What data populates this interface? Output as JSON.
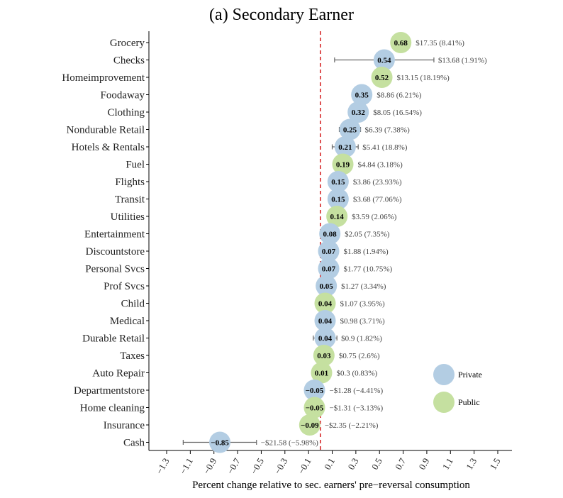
{
  "chart_data": {
    "type": "scatter",
    "title": "(a) Secondary Earner",
    "xlabel": "Percent change relative to sec. earners' pre−reversal consumption",
    "ylabel": "",
    "xlim": [
      -1.45,
      1.62
    ],
    "xticks": [
      -1.3,
      -1.1,
      -0.9,
      -0.7,
      -0.5,
      -0.3,
      -0.1,
      0.1,
      0.3,
      0.5,
      0.7,
      0.9,
      1.1,
      1.3,
      1.5
    ],
    "xtick_labels": [
      "−1.3",
      "−1.1",
      "−0.9",
      "−0.7",
      "−0.5",
      "−0.3",
      "−0.1",
      "0.1",
      "0.3",
      "0.5",
      "0.7",
      "0.9",
      "1.1",
      "1.3",
      "1.5"
    ],
    "reference_line": 0,
    "grid": false,
    "legend_position": "right",
    "legend": [
      {
        "name": "Private",
        "color": "#b3cde3"
      },
      {
        "name": "Public",
        "color": "#c5e0a0"
      }
    ],
    "points": [
      {
        "category": "Grocery",
        "value": 0.68,
        "label": "0.68",
        "lo": 0.6,
        "hi": 0.76,
        "group": "Public",
        "annotation": "$17.35 (8.41%)"
      },
      {
        "category": "Checks",
        "value": 0.54,
        "label": "0.54",
        "lo": 0.12,
        "hi": 0.96,
        "group": "Private",
        "annotation": "$13.68 (1.91%)"
      },
      {
        "category": "Homeimprovement",
        "value": 0.52,
        "label": "0.52",
        "lo": 0.45,
        "hi": 0.59,
        "group": "Public",
        "annotation": "$13.15 (18.19%)"
      },
      {
        "category": "Foodaway",
        "value": 0.35,
        "label": "0.35",
        "lo": 0.29,
        "hi": 0.41,
        "group": "Private",
        "annotation": "$8.86 (6.21%)"
      },
      {
        "category": "Clothing",
        "value": 0.32,
        "label": "0.32",
        "lo": 0.26,
        "hi": 0.38,
        "group": "Private",
        "annotation": "$8.05 (16.54%)"
      },
      {
        "category": "Nondurable Retail",
        "value": 0.25,
        "label": "0.25",
        "lo": 0.16,
        "hi": 0.34,
        "group": "Private",
        "annotation": "$6.39 (7.38%)"
      },
      {
        "category": "Hotels & Rentals",
        "value": 0.21,
        "label": "0.21",
        "lo": 0.1,
        "hi": 0.32,
        "group": "Private",
        "annotation": "$5.41 (18.8%)"
      },
      {
        "category": "Fuel",
        "value": 0.19,
        "label": "0.19",
        "lo": 0.14,
        "hi": 0.24,
        "group": "Public",
        "annotation": "$4.84 (3.18%)"
      },
      {
        "category": "Flights",
        "value": 0.15,
        "label": "0.15",
        "lo": 0.07,
        "hi": 0.23,
        "group": "Private",
        "annotation": "$3.86 (23.93%)"
      },
      {
        "category": "Transit",
        "value": 0.15,
        "label": "0.15",
        "lo": 0.1,
        "hi": 0.2,
        "group": "Private",
        "annotation": "$3.68 (77.06%)"
      },
      {
        "category": "Utilities",
        "value": 0.14,
        "label": "0.14",
        "lo": 0.08,
        "hi": 0.2,
        "group": "Public",
        "annotation": "$3.59 (2.06%)"
      },
      {
        "category": "Entertainment",
        "value": 0.08,
        "label": "0.08",
        "lo": 0.03,
        "hi": 0.13,
        "group": "Private",
        "annotation": "$2.05 (7.35%)"
      },
      {
        "category": "Discountstore",
        "value": 0.07,
        "label": "0.07",
        "lo": 0.03,
        "hi": 0.11,
        "group": "Private",
        "annotation": "$1.88 (1.94%)"
      },
      {
        "category": "Personal Svcs",
        "value": 0.07,
        "label": "0.07",
        "lo": 0.03,
        "hi": 0.11,
        "group": "Private",
        "annotation": "$1.77 (10.75%)"
      },
      {
        "category": "Prof Svcs",
        "value": 0.05,
        "label": "0.05",
        "lo": 0.0,
        "hi": 0.1,
        "group": "Private",
        "annotation": "$1.27 (3.34%)"
      },
      {
        "category": "Child",
        "value": 0.04,
        "label": "0.04",
        "lo": 0.0,
        "hi": 0.08,
        "group": "Public",
        "annotation": "$1.07 (3.95%)"
      },
      {
        "category": "Medical",
        "value": 0.04,
        "label": "0.04",
        "lo": 0.0,
        "hi": 0.08,
        "group": "Private",
        "annotation": "$0.98 (3.71%)"
      },
      {
        "category": "Durable Retail",
        "value": 0.04,
        "label": "0.04",
        "lo": -0.06,
        "hi": 0.14,
        "group": "Private",
        "annotation": "$0.9 (1.82%)"
      },
      {
        "category": "Taxes",
        "value": 0.03,
        "label": "0.03",
        "lo": -0.05,
        "hi": 0.11,
        "group": "Public",
        "annotation": "$0.75 (2.6%)"
      },
      {
        "category": "Auto Repair",
        "value": 0.01,
        "label": "0.01",
        "lo": -0.05,
        "hi": 0.07,
        "group": "Public",
        "annotation": "$0.3 (0.83%)"
      },
      {
        "category": "Departmentstore",
        "value": -0.05,
        "label": "−0.05",
        "lo": -0.11,
        "hi": 0.01,
        "group": "Private",
        "annotation": "−$1.28 (−4.41%)"
      },
      {
        "category": "Home cleaning",
        "value": -0.05,
        "label": "−0.05",
        "lo": -0.11,
        "hi": 0.01,
        "group": "Public",
        "annotation": "−$1.31 (−3.13%)"
      },
      {
        "category": "Insurance",
        "value": -0.09,
        "label": "−0.09",
        "lo": -0.16,
        "hi": -0.02,
        "group": "Public",
        "annotation": "−$2.35 (−2.21%)"
      },
      {
        "category": "Cash",
        "value": -0.85,
        "label": "−0.85",
        "lo": -1.16,
        "hi": -0.54,
        "group": "Private",
        "annotation": "−$21.58 (−5.98%)"
      }
    ]
  }
}
